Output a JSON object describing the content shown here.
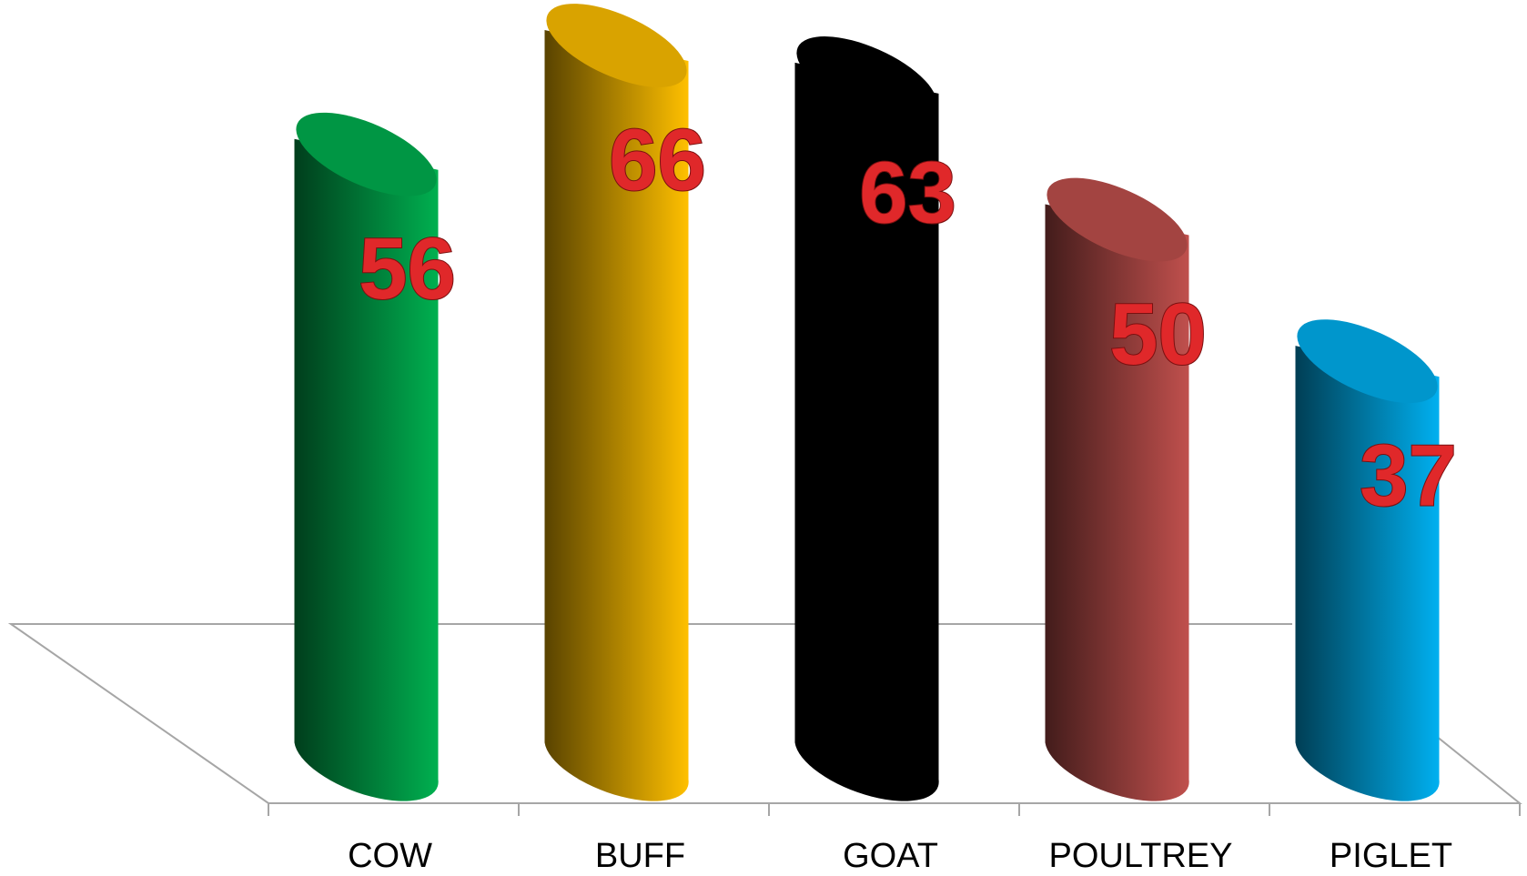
{
  "chart_data": {
    "type": "bar",
    "categories": [
      "COW",
      "BUFF",
      "GOAT",
      "POULTREY",
      "PIGLET"
    ],
    "values": [
      56,
      66,
      63,
      50,
      37
    ],
    "colors": [
      "#00b050",
      "#ffc000",
      "#000000",
      "#c0504d",
      "#00b0f0"
    ]
  }
}
